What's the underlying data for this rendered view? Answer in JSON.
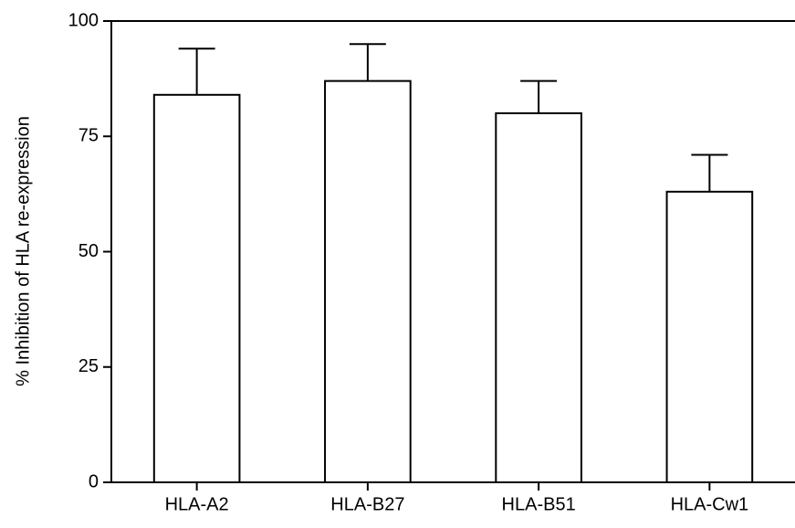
{
  "chart_data": {
    "type": "bar",
    "y_label": "% Inhibition of HLA re-expression",
    "categories": [
      "HLA-A2",
      "HLA-B27",
      "HLA-B51",
      "HLA-Cw1"
    ],
    "values": [
      84,
      87,
      80,
      63
    ],
    "errors": [
      10,
      8,
      7,
      8
    ],
    "color": "#ffffff",
    "ylim": [
      0,
      100
    ],
    "yticks": [
      0,
      25,
      50,
      75,
      100
    ],
    "grid": false
  }
}
